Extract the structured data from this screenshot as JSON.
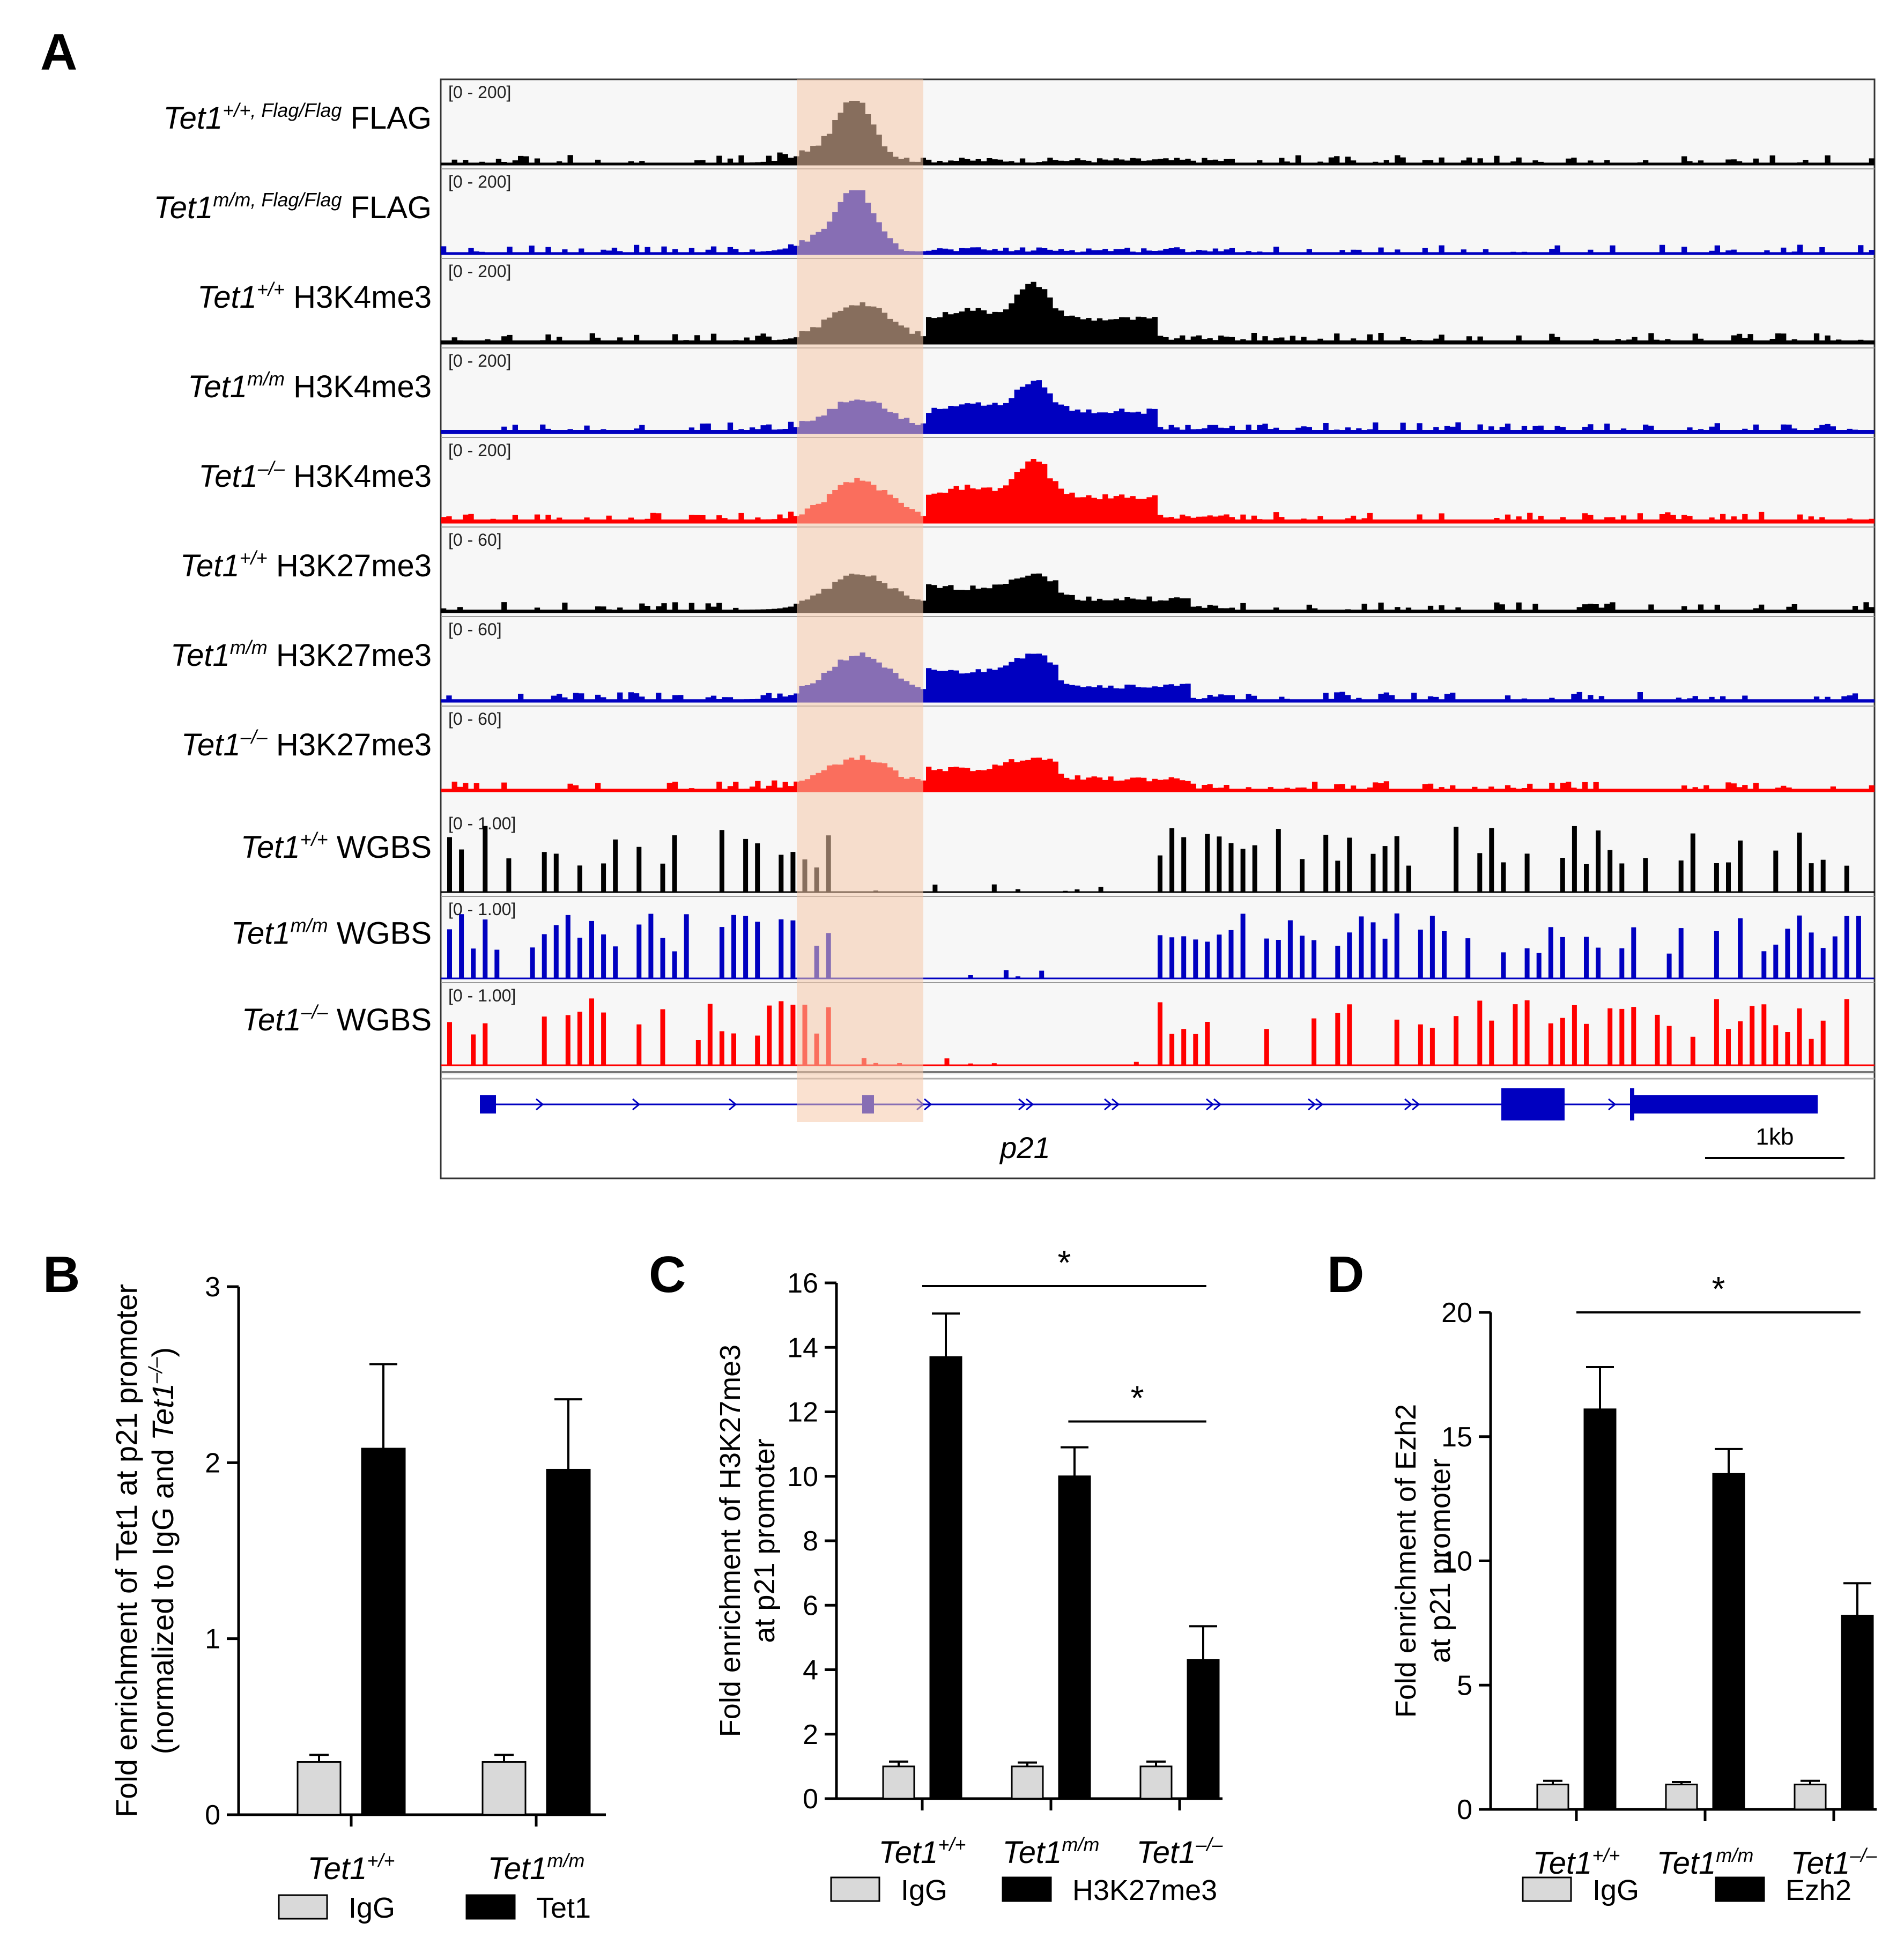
{
  "panel_letters": {
    "a": "A",
    "b": "B",
    "c": "C",
    "d": "D"
  },
  "panelA": {
    "tracks": [
      {
        "gene": "Tet1",
        "sup": "+/+, Flag/Flag",
        "assay": "FLAG",
        "range": "[0 - 200]",
        "color": "#000000",
        "type": "signal"
      },
      {
        "gene": "Tet1",
        "sup": "m/m, Flag/Flag",
        "assay": "FLAG",
        "range": "[0 - 200]",
        "color": "#0000c0",
        "type": "signal"
      },
      {
        "gene": "Tet1",
        "sup": "+/+",
        "assay": "H3K4me3",
        "range": "[0 - 200]",
        "color": "#000000",
        "type": "signal"
      },
      {
        "gene": "Tet1",
        "sup": "m/m",
        "assay": "H3K4me3",
        "range": "[0 - 200]",
        "color": "#0000c0",
        "type": "signal"
      },
      {
        "gene": "Tet1",
        "sup": "–/–",
        "assay": "H3K4me3",
        "range": "[0 - 200]",
        "color": "#ff0000",
        "type": "signal"
      },
      {
        "gene": "Tet1",
        "sup": "+/+",
        "assay": "H3K27me3",
        "range": "[0 - 60]",
        "color": "#000000",
        "type": "signal"
      },
      {
        "gene": "Tet1",
        "sup": "m/m",
        "assay": "H3K27me3",
        "range": "[0 - 60]",
        "color": "#0000c0",
        "type": "signal"
      },
      {
        "gene": "Tet1",
        "sup": "–/–",
        "assay": "H3K27me3",
        "range": "[0 - 60]",
        "color": "#ff0000",
        "type": "signal"
      },
      {
        "gene": "Tet1",
        "sup": "+/+",
        "assay": "WGBS",
        "range": "[0 - 1.00]",
        "color": "#000000",
        "type": "wgbs"
      },
      {
        "gene": "Tet1",
        "sup": "m/m",
        "assay": "WGBS",
        "range": "[0 - 1.00]",
        "color": "#0000c0",
        "type": "wgbs"
      },
      {
        "gene": "Tet1",
        "sup": "–/–",
        "assay": "WGBS",
        "range": "[0 - 1.00]",
        "color": "#ff0000",
        "type": "wgbs"
      }
    ],
    "gene_label": "p21",
    "scale_label": "1kb",
    "highlight_color": "#f5c9aa"
  },
  "chart_data": [
    {
      "type": "bar",
      "panel": "B",
      "categories": [
        {
          "gene": "Tet1",
          "sup": "+/+"
        },
        {
          "gene": "Tet1",
          "sup": "m/m"
        }
      ],
      "series": [
        {
          "name": "IgG",
          "color": "#d9d9d9",
          "values": [
            0.3,
            0.3
          ],
          "errors": [
            0.04,
            0.04
          ]
        },
        {
          "name": "Tet1",
          "color": "#000000",
          "values": [
            2.08,
            1.96
          ],
          "errors": [
            0.48,
            0.4
          ]
        }
      ],
      "ylabel": "Fold enrichment of Tet1 at p21 promoter",
      "ylabel2_prefix": "(normalized to IgG and ",
      "ylabel2_gene": "Tet1",
      "ylabel2_sup": "–/–",
      "ylabel2_suffix": ")",
      "ylim": [
        0,
        3
      ],
      "yticks": [
        0,
        1,
        2,
        3
      ],
      "significance": []
    },
    {
      "type": "bar",
      "panel": "C",
      "categories": [
        {
          "gene": "Tet1",
          "sup": "+/+"
        },
        {
          "gene": "Tet1",
          "sup": "m/m"
        },
        {
          "gene": "Tet1",
          "sup": "–/–"
        }
      ],
      "series": [
        {
          "name": "IgG",
          "color": "#d9d9d9",
          "values": [
            1.0,
            1.0,
            1.0
          ],
          "errors": [
            0.15,
            0.12,
            0.15
          ]
        },
        {
          "name": "H3K27me3",
          "color": "#000000",
          "values": [
            13.7,
            10.0,
            4.3
          ],
          "errors": [
            1.35,
            0.9,
            1.05
          ]
        }
      ],
      "ylabel": "Fold enrichment of H3K27me3",
      "ylabel_line2": "at p21 promoter",
      "ylim": [
        0,
        16
      ],
      "yticks": [
        0,
        2,
        4,
        6,
        8,
        10,
        12,
        14,
        16
      ],
      "significance": [
        {
          "from": 0,
          "to": 2,
          "y": 15.9,
          "label": "*"
        },
        {
          "from": 1,
          "to": 2,
          "y": 11.7,
          "label": "*"
        }
      ]
    },
    {
      "type": "bar",
      "panel": "D",
      "categories": [
        {
          "gene": "Tet1",
          "sup": "+/+"
        },
        {
          "gene": "Tet1",
          "sup": "m/m"
        },
        {
          "gene": "Tet1",
          "sup": "–/–"
        }
      ],
      "series": [
        {
          "name": "IgG",
          "color": "#d9d9d9",
          "values": [
            1.0,
            1.0,
            1.0
          ],
          "errors": [
            0.15,
            0.1,
            0.15
          ]
        },
        {
          "name": "Ezh2",
          "color": "#000000",
          "values": [
            16.1,
            13.5,
            7.8
          ],
          "errors": [
            1.7,
            1.0,
            1.3
          ]
        }
      ],
      "ylabel": "Fold enrichment of Ezh2",
      "ylabel_line2": "at p21 promoter",
      "ylim": [
        0,
        20
      ],
      "yticks": [
        0,
        5,
        10,
        15,
        20
      ],
      "significance": [
        {
          "from": 0,
          "to": 2,
          "y": 20,
          "label": "*"
        }
      ]
    }
  ]
}
